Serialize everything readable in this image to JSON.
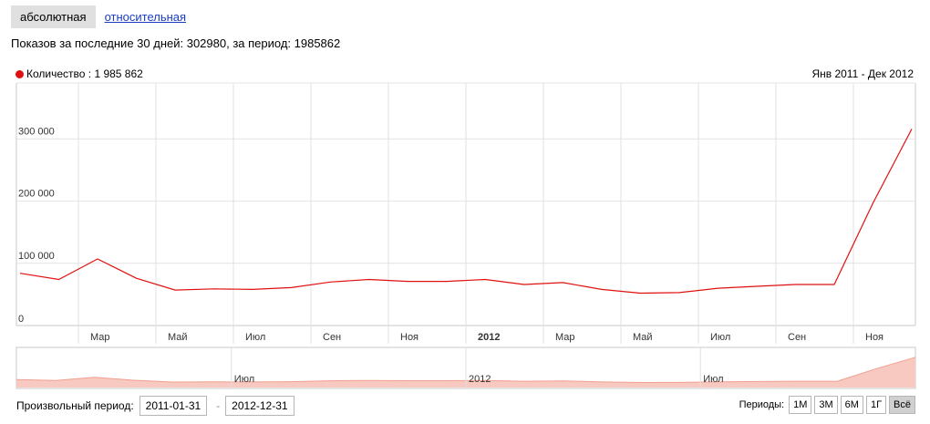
{
  "tabs": {
    "active": "абсолютная",
    "link": "относительная"
  },
  "summary": "Показов за последние 30 дней: 302980, за период: 1985862",
  "legend": {
    "label": "Количество : 1 985 862",
    "color": "#e01010"
  },
  "range_label": "Янв 2011 - Дек 2012",
  "navigator": {
    "labels": [
      "Июл",
      "2012",
      "Июл"
    ]
  },
  "custom_period": {
    "label": "Произвольный период:",
    "from": "2011-01-31",
    "to": "2012-12-31",
    "dash": "-"
  },
  "periods": {
    "label": "Периоды:",
    "buttons": [
      "1М",
      "3М",
      "6М",
      "1Г",
      "Всё"
    ],
    "active": "Всё"
  },
  "chart_data": {
    "type": "line",
    "x": [
      "2011-01",
      "2011-02",
      "2011-03",
      "2011-04",
      "2011-05",
      "2011-06",
      "2011-07",
      "2011-08",
      "2011-09",
      "2011-10",
      "2011-11",
      "2011-12",
      "2012-01",
      "2012-02",
      "2012-03",
      "2012-04",
      "2012-05",
      "2012-06",
      "2012-07",
      "2012-08",
      "2012-09",
      "2012-10",
      "2012-11",
      "2012-12"
    ],
    "series": [
      {
        "name": "Количество",
        "values": [
          84000,
          74000,
          107000,
          76000,
          57000,
          59000,
          58000,
          61000,
          70000,
          74000,
          71000,
          71000,
          74000,
          66000,
          69000,
          58000,
          52000,
          53000,
          60000,
          63000,
          66000,
          66000,
          197000,
          316000
        ],
        "color": "#e01010"
      }
    ],
    "x_tick_labels": [
      "Мар",
      "Май",
      "Июл",
      "Сен",
      "Ноя",
      "2012",
      "Мар",
      "Май",
      "Июл",
      "Сен",
      "Ноя"
    ],
    "bold_tick": "2012",
    "y_ticks": [
      0,
      100000,
      200000,
      300000
    ],
    "y_tick_labels": [
      "0",
      "100 000",
      "200 000",
      "300 000"
    ],
    "ylim": [
      0,
      390000
    ],
    "grid": true,
    "legend_position": "top-left"
  }
}
